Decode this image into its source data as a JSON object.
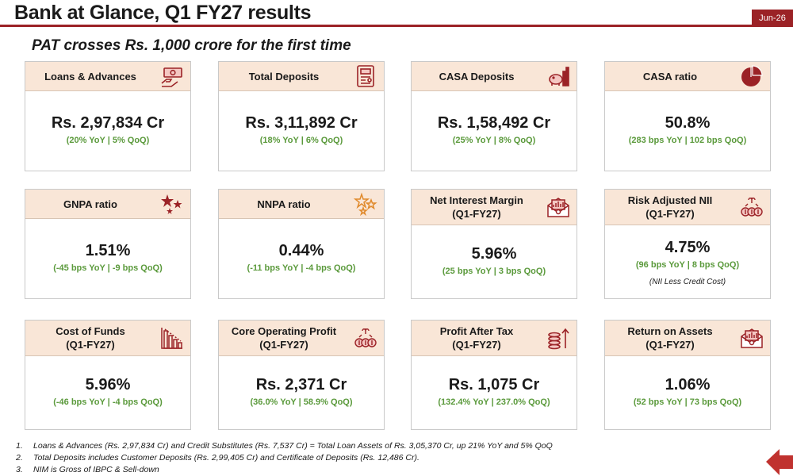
{
  "header": {
    "title": "Bank at Glance, Q1 FY27 results",
    "date_tag": "Jun-26",
    "subtitle": "PAT crosses Rs. 1,000 crore for the first time"
  },
  "theme": {
    "accent": "#9b2226",
    "header_fill": "#f9e6d7",
    "positive": "#5b9a3c"
  },
  "cards": [
    {
      "label_lines": [
        "Loans & Advances"
      ],
      "value": "Rs. 2,97,834 Cr",
      "change": "(20% YoY | 5% QoQ)",
      "icon": "cash-hand-icon"
    },
    {
      "label_lines": [
        "Total Deposits"
      ],
      "value": "Rs. 3,11,892 Cr",
      "change": "(18% YoY | 6% QoQ)",
      "icon": "atm-icon"
    },
    {
      "label_lines": [
        "CASA Deposits"
      ],
      "value": "Rs. 1,58,492 Cr",
      "change": "(25% YoY | 8% QoQ)",
      "icon": "piggy-bank-icon"
    },
    {
      "label_lines": [
        "CASA ratio"
      ],
      "value": "50.8%",
      "change": "(283 bps YoY | 102 bps QoQ)",
      "icon": "pie-chart-icon"
    },
    {
      "label_lines": [
        "GNPA ratio"
      ],
      "value": "1.51%",
      "change": "(-45 bps YoY | -9 bps QoQ)",
      "icon": "stars-filled-icon"
    },
    {
      "label_lines": [
        "NNPA ratio"
      ],
      "value": "0.44%",
      "change": "(-11 bps YoY | -4 bps QoQ)",
      "icon": "stars-outline-icon"
    },
    {
      "label_lines": [
        "Net Interest Margin",
        "(Q1-FY27)"
      ],
      "value": "5.96%",
      "change": "(25 bps YoY | 3 bps QoQ)",
      "icon": "envelope-chart-icon"
    },
    {
      "label_lines": [
        "Risk Adjusted NII",
        "(Q1-FY27)"
      ],
      "value": "4.75%",
      "change": "(96 bps YoY | 8 bps QoQ)",
      "note": "(NII Less Credit Cost)",
      "icon": "money-bags-icon"
    },
    {
      "label_lines": [
        "Cost of Funds",
        "(Q1-FY27)"
      ],
      "value": "5.96%",
      "change": "(-46 bps YoY | -4 bps QoQ)",
      "icon": "declining-bars-icon"
    },
    {
      "label_lines": [
        "Core Operating Profit",
        "(Q1-FY27)"
      ],
      "value": "Rs. 2,371 Cr",
      "change": "(36.0% YoY | 58.9% QoQ)",
      "icon": "money-bags-icon"
    },
    {
      "label_lines": [
        "Profit After Tax",
        "(Q1-FY27)"
      ],
      "value": "Rs. 1,075 Cr",
      "change": "(132.4% YoY | 237.0% QoQ)",
      "icon": "coins-up-icon"
    },
    {
      "label_lines": [
        "Return on Assets",
        "(Q1-FY27)"
      ],
      "value": "1.06%",
      "change": "(52 bps YoY | 73 bps QoQ)",
      "icon": "envelope-chart-icon"
    }
  ],
  "footnotes": [
    {
      "num": "1.",
      "text": "Loans & Advances (Rs. 2,97,834 Cr) and Credit Substitutes (Rs. 7,537 Cr) = Total Loan Assets of Rs. 3,05,370 Cr, up 21% YoY and 5% QoQ"
    },
    {
      "num": "2.",
      "text": "Total Deposits includes Customer Deposits (Rs. 2,99,405 Cr) and Certificate of Deposits (Rs. 12,486 Cr)."
    },
    {
      "num": "3.",
      "text": "NIM is Gross of IBPC & Sell-down"
    }
  ]
}
